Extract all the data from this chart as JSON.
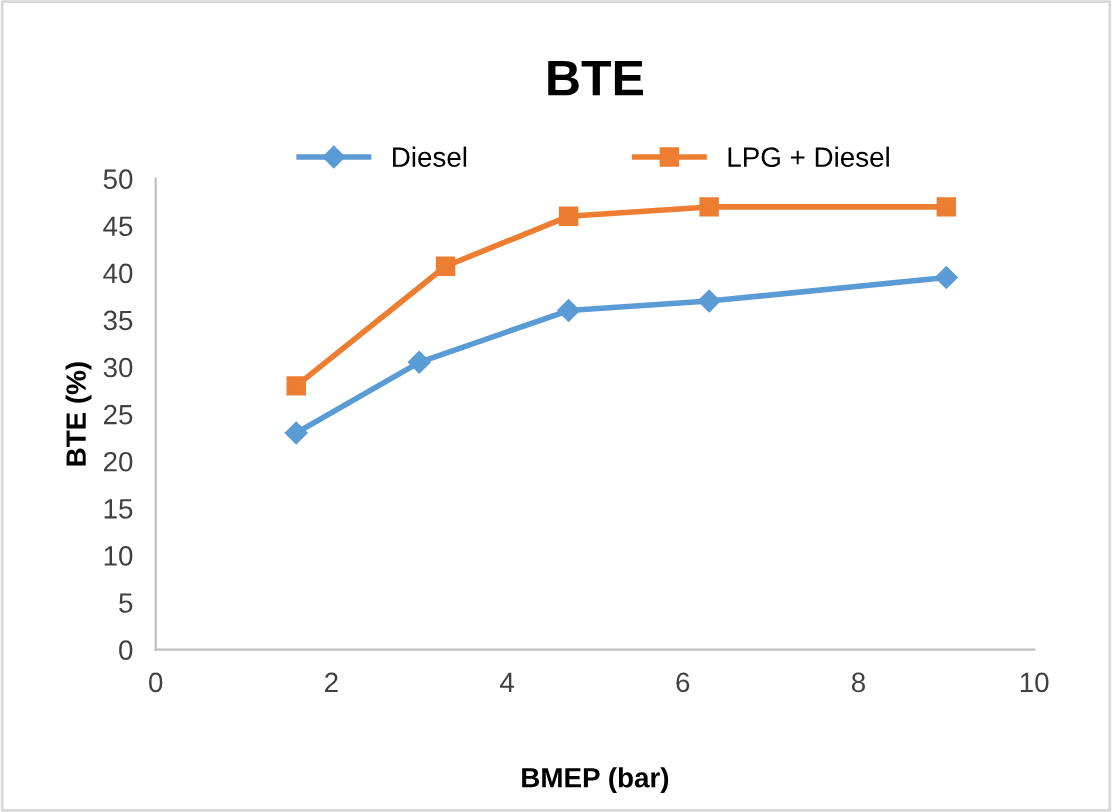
{
  "chart_data": {
    "type": "line",
    "title": "BTE",
    "xlabel": "BMEP (bar)",
    "ylabel": "BTE (%)",
    "xlim": [
      0,
      10
    ],
    "xticks": [
      0,
      2,
      4,
      6,
      8,
      10
    ],
    "ylim": [
      0,
      50
    ],
    "yticks": [
      0,
      5,
      10,
      15,
      20,
      25,
      30,
      35,
      40,
      45,
      50
    ],
    "grid": false,
    "legend": "top",
    "series": [
      {
        "name": "Diesel",
        "color": "#5b9bd5",
        "marker": "diamond",
        "x": [
          1.6,
          3.0,
          4.7,
          6.3,
          9.0
        ],
        "values": [
          23,
          30.5,
          36,
          37,
          39.5
        ]
      },
      {
        "name": "LPG + Diesel",
        "color": "#ed7d31",
        "marker": "square",
        "x": [
          1.6,
          3.3,
          4.7,
          6.3,
          9.0
        ],
        "values": [
          28,
          40.7,
          46,
          47,
          47
        ]
      }
    ]
  }
}
